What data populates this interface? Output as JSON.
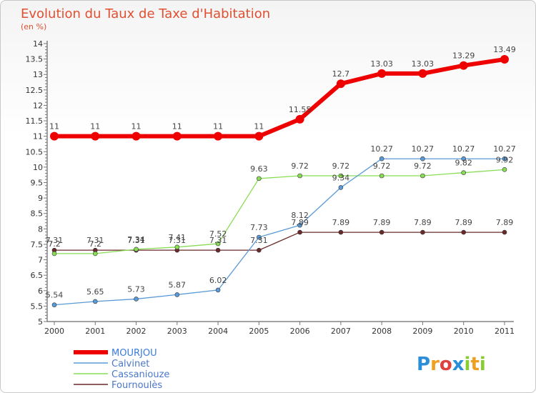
{
  "chart_data": {
    "type": "line",
    "title": "Evolution du Taux de Taxe d'Habitation",
    "subtitle": "(en %)",
    "xlabel": "",
    "ylabel": "",
    "ylim": [
      5,
      14
    ],
    "ytick_labels": [
      "5",
      "5.5",
      "6",
      "6.5",
      "7",
      "7.5",
      "8",
      "8.5",
      "9",
      "9.5",
      "10",
      "10.5",
      "11",
      "11.5",
      "12",
      "12.5",
      "13",
      "13.5",
      "14"
    ],
    "categories": [
      "2000",
      "2001",
      "2002",
      "2003",
      "2004",
      "2005",
      "2006",
      "2007",
      "2008",
      "2009",
      "2010",
      "2011"
    ],
    "series": [
      {
        "name": "MOURJOU",
        "color": "#ee0000",
        "values": [
          11,
          11,
          11,
          11,
          11,
          11,
          11.55,
          12.7,
          13.03,
          13.03,
          13.29,
          13.49
        ],
        "labels": [
          "11",
          "11",
          "11",
          "11",
          "11",
          "11",
          "11.55",
          "12.7",
          "13.03",
          "13.03",
          "13.29",
          "13.49"
        ]
      },
      {
        "name": "Calvinet",
        "color": "#5a9ad6",
        "values": [
          5.54,
          5.65,
          5.73,
          5.87,
          6.02,
          7.73,
          8.12,
          9.34,
          10.27,
          10.27,
          10.27,
          10.27
        ],
        "labels": [
          "5.54",
          "5.65",
          "5.73",
          "5.87",
          "6.02",
          "7.73",
          "8.12",
          "9.34",
          "10.27",
          "10.27",
          "10.27",
          "10.27"
        ]
      },
      {
        "name": "Cassaniouze",
        "color": "#88dd55",
        "values": [
          7.2,
          7.2,
          7.34,
          7.41,
          7.52,
          9.63,
          9.72,
          9.72,
          9.72,
          9.72,
          9.82,
          9.92
        ],
        "labels": [
          "7.2",
          "7.2",
          "7.34",
          "7.41",
          "7.52",
          "9.63",
          "9.72",
          "9.72",
          "9.72",
          "9.72",
          "9.82",
          "9.92"
        ]
      },
      {
        "name": "Fournoulès",
        "color": "#6a2a2a",
        "values": [
          7.31,
          7.31,
          7.31,
          7.31,
          7.31,
          7.31,
          7.89,
          7.89,
          7.89,
          7.89,
          7.89,
          7.89
        ],
        "labels": [
          "7.31",
          "7.31",
          "7.31",
          "7.31",
          "7.31",
          "7.31",
          "7.89",
          "7.89",
          "7.89",
          "7.89",
          "7.89",
          "7.89"
        ]
      }
    ],
    "legend_position": "bottom-left",
    "grid": false
  },
  "logo": {
    "letters": [
      "P",
      "r",
      "o",
      "x",
      "i",
      "t",
      "i"
    ],
    "colors": [
      "#2a8fd8",
      "#f0a020",
      "#e04040",
      "#2a8fd8",
      "#88cc33",
      "#f0a020",
      "#88cc33"
    ]
  }
}
